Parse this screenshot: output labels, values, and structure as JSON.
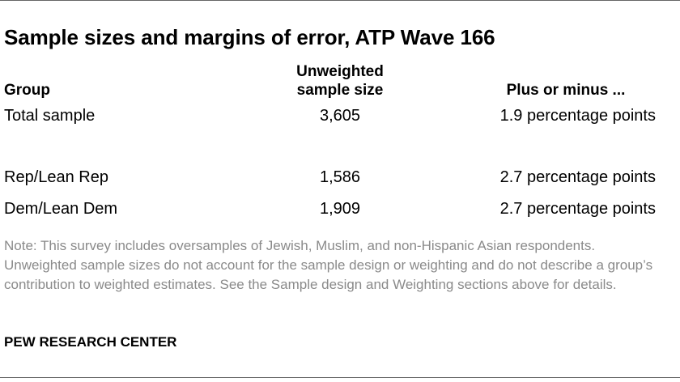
{
  "title": "Sample sizes and margins of error, ATP Wave 166",
  "headers": {
    "group": "Group",
    "size_line1": "Unweighted",
    "size_line2": "sample size",
    "moe": "Plus or minus ..."
  },
  "rows": [
    {
      "group": "Total sample",
      "size": "3,605",
      "moe": "1.9 percentage points"
    },
    {
      "group": "Rep/Lean Rep",
      "size": "1,586",
      "moe": "2.7 percentage points"
    },
    {
      "group": "Dem/Lean Dem",
      "size": "1,909",
      "moe": "2.7 percentage points"
    }
  ],
  "note": "Note: This survey includes oversamples of Jewish, Muslim, and non-Hispanic Asian respondents. Unweighted sample sizes do not account for the sample design or weighting and do not describe a group’s contribution to weighted estimates. See the Sample design and Weighting sections above for details.",
  "source": "PEW RESEARCH CENTER"
}
